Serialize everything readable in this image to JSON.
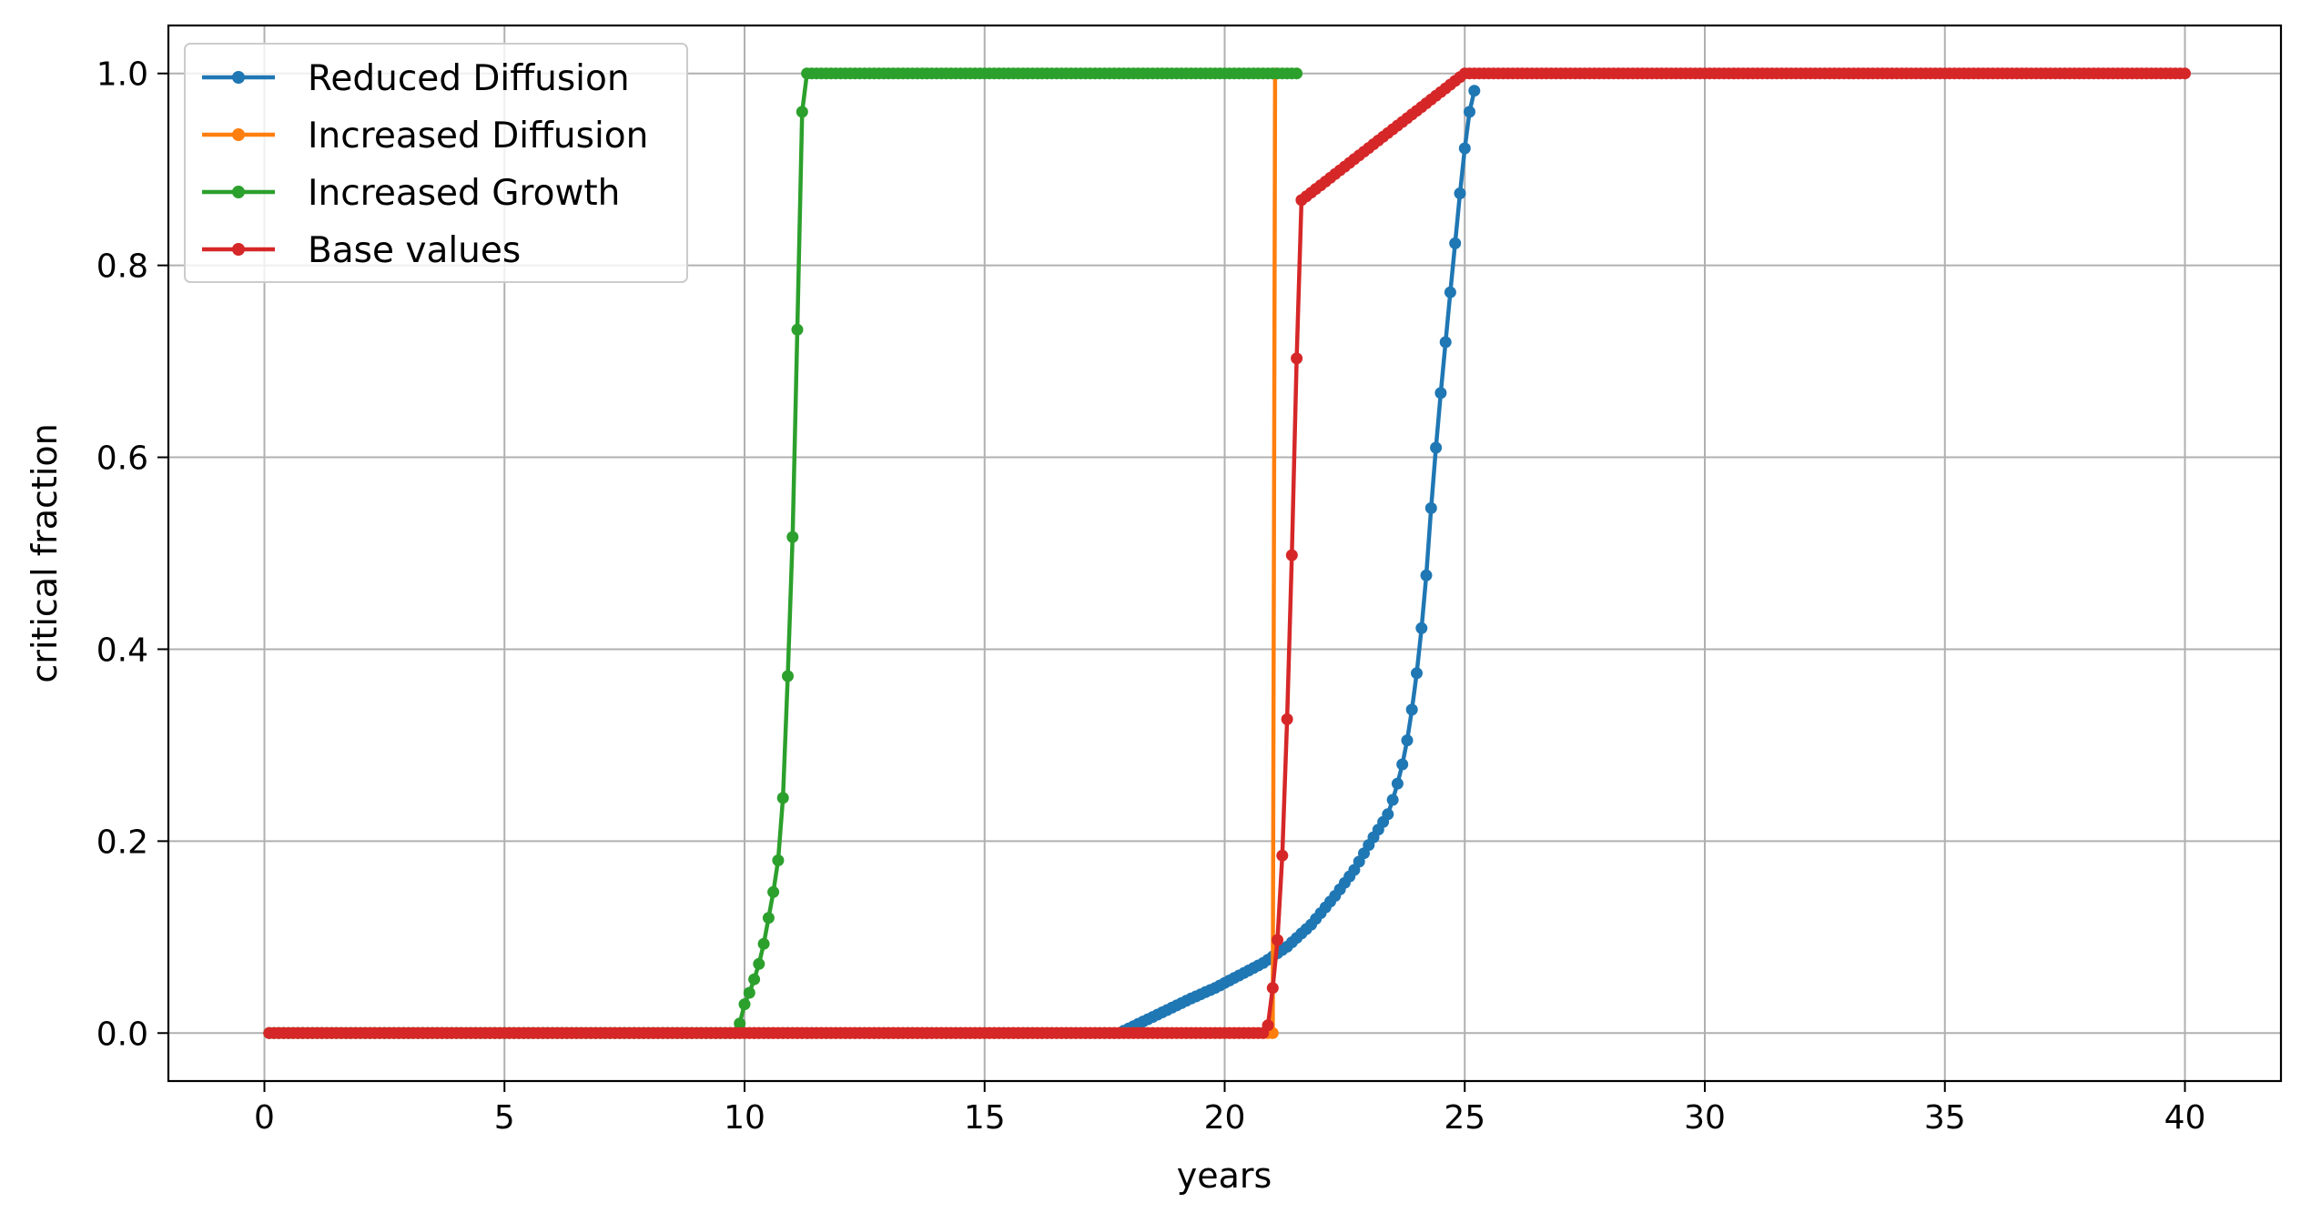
{
  "chart_data": {
    "type": "line",
    "title": "",
    "xlabel": "years",
    "ylabel": "critical fraction",
    "xlim": [
      -2,
      42
    ],
    "ylim": [
      -0.05,
      1.05
    ],
    "xticks": [
      0,
      5,
      10,
      15,
      20,
      25,
      30,
      35,
      40
    ],
    "xtick_labels": [
      "0",
      "5",
      "10",
      "15",
      "20",
      "25",
      "30",
      "35",
      "40"
    ],
    "yticks": [
      0.0,
      0.2,
      0.4,
      0.6,
      0.8,
      1.0
    ],
    "ytick_labels": [
      "0.0",
      "0.2",
      "0.4",
      "0.6",
      "0.8",
      "1.0"
    ],
    "grid": true,
    "legend_position": "top-left",
    "series": [
      {
        "name": "Reduced Diffusion",
        "color": "#1f77b4",
        "x": [
          0.1,
          5,
          10,
          15,
          17.8,
          18.3,
          18.8,
          19.3,
          19.8,
          20.3,
          20.8,
          21.3,
          21.8,
          22.3,
          22.7,
          23.0,
          23.2,
          23.4,
          23.5,
          23.6,
          23.7,
          23.8,
          23.9,
          24.0,
          24.1,
          24.2,
          24.3,
          24.4,
          24.5,
          24.6,
          24.7,
          24.8,
          24.9,
          25.0,
          25.1,
          25.2
        ],
        "y": [
          0.0,
          0.0,
          0.0,
          0.0,
          0.0,
          0.012,
          0.024,
          0.036,
          0.047,
          0.06,
          0.073,
          0.09,
          0.113,
          0.143,
          0.17,
          0.196,
          0.212,
          0.228,
          0.243,
          0.26,
          0.28,
          0.305,
          0.337,
          0.375,
          0.422,
          0.477,
          0.547,
          0.61,
          0.667,
          0.72,
          0.772,
          0.823,
          0.875,
          0.922,
          0.96,
          0.982
        ]
      },
      {
        "name": "Increased Diffusion",
        "color": "#ff7f0e",
        "x": [
          0.1,
          5,
          10,
          15,
          20,
          21.0,
          21.05
        ],
        "y": [
          0.0,
          0.0,
          0.0,
          0.0,
          0.0,
          0.0,
          1.0
        ]
      },
      {
        "name": "Increased Growth",
        "color": "#2ca02c",
        "x": [
          0.1,
          5,
          9.8,
          9.9,
          10.0,
          10.1,
          10.2,
          10.3,
          10.4,
          10.5,
          10.6,
          10.7,
          10.8,
          10.9,
          11.0,
          11.1,
          11.2,
          11.3,
          15,
          20,
          21.5
        ],
        "y": [
          0.0,
          0.0,
          0.0,
          0.01,
          0.03,
          0.042,
          0.056,
          0.072,
          0.093,
          0.12,
          0.147,
          0.18,
          0.245,
          0.372,
          0.517,
          0.733,
          0.96,
          1.0,
          1.0,
          1.0,
          1.0
        ]
      },
      {
        "name": "Base values",
        "color": "#d62728",
        "x": [
          0.1,
          5,
          10,
          15,
          20,
          20.8,
          20.9,
          21.0,
          21.1,
          21.2,
          21.3,
          21.4,
          21.5,
          21.6,
          25,
          30,
          35,
          40
        ],
        "y": [
          0.0,
          0.0,
          0.0,
          0.0,
          0.0,
          0.0,
          0.008,
          0.047,
          0.097,
          0.185,
          0.327,
          0.498,
          0.703,
          0.868,
          1.0,
          1.0,
          1.0,
          1.0
        ]
      }
    ]
  }
}
